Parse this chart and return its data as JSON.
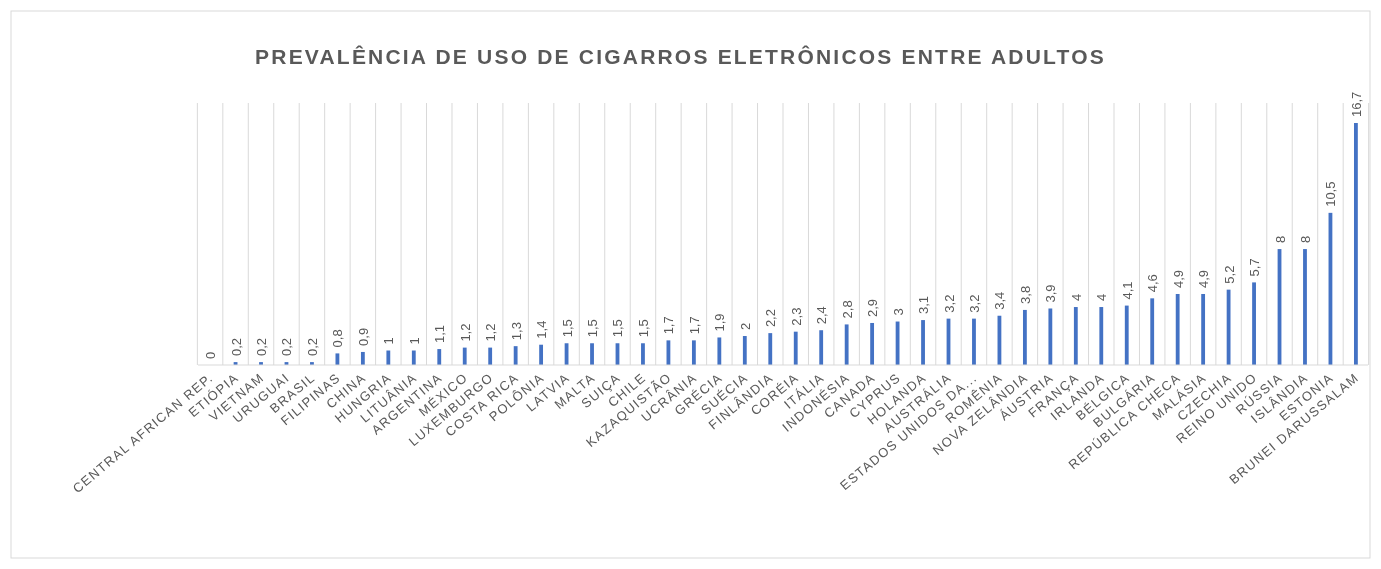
{
  "chart_data": {
    "type": "bar",
    "title": "PREVALÊNCIA DE USO DE CIGARROS ELETRÔNICOS ENTRE ADULTOS",
    "categories": [
      "CENTRAL AFRICAN REP.",
      "ETIÓPIA",
      "VIETNAM",
      "URUGUAI",
      "BRASIL",
      "FILIPINAS",
      "CHINA",
      "HUNGRIA",
      "LITUÂNIA",
      "ARGENTINA",
      "MÉXICO",
      "LUXEMBURGO",
      "COSTA RICA",
      "POLÔNIA",
      "LATVIA",
      "MALTA",
      "SUIÇA",
      "CHILE",
      "KAZAQUISTÃO",
      "UCRÂNIA",
      "GRÉCIA",
      "SUÉCIA",
      "FINLÂNDIA",
      "CORÉIA",
      "ITÁLIA",
      "INDONÉSIA",
      "CANADA",
      "CYPRUS",
      "HOLANDA",
      "AUSTRÁLIA",
      "ESTADOS UNIDOS DA...",
      "ROMÊNIA",
      "NOVA ZELÂNDIA",
      "ÁUSTRIA",
      "FRANÇA",
      "IRLANDA",
      "BÉLGICA",
      "BULGÁRIA",
      "REPÚBLICA CHECA",
      "MALÁSIA",
      "CZECHIA",
      "REINO UNIDO",
      "RÚSSIA",
      "ISLÂNDIA",
      "ESTONIA",
      "BRUNEI DARUSSALAM"
    ],
    "values": [
      0,
      0.2,
      0.2,
      0.2,
      0.2,
      0.8,
      0.9,
      1,
      1,
      1.1,
      1.2,
      1.2,
      1.3,
      1.4,
      1.5,
      1.5,
      1.5,
      1.5,
      1.7,
      1.7,
      1.9,
      2,
      2.2,
      2.3,
      2.4,
      2.8,
      2.9,
      3,
      3.1,
      3.2,
      3.2,
      3.4,
      3.8,
      3.9,
      4,
      4,
      4.1,
      4.6,
      4.9,
      4.9,
      5.2,
      5.7,
      8,
      8,
      10.5,
      16.7
    ],
    "value_labels": [
      "0",
      "0,2",
      "0,2",
      "0,2",
      "0,2",
      "0,8",
      "0,9",
      "1",
      "1",
      "1,1",
      "1,2",
      "1,2",
      "1,3",
      "1,4",
      "1,5",
      "1,5",
      "1,5",
      "1,5",
      "1,7",
      "1,7",
      "1,9",
      "2",
      "2,2",
      "2,3",
      "2,4",
      "2,8",
      "2,9",
      "3",
      "3,1",
      "3,2",
      "3,2",
      "3,4",
      "3,8",
      "3,9",
      "4",
      "4",
      "4,1",
      "4,6",
      "4,9",
      "4,9",
      "5,2",
      "5,7",
      "8",
      "8",
      "10,5",
      "16,7"
    ],
    "color": "#4472c4",
    "grid": "x"
  }
}
